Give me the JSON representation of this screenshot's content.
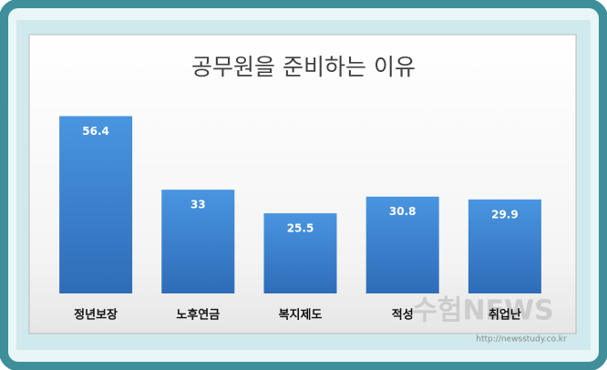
{
  "chart_data": {
    "type": "bar",
    "title": "공무원을 준비하는 이유",
    "categories": [
      "정년보장",
      "노후연금",
      "복지제도",
      "적성",
      "취업난"
    ],
    "values": [
      56.4,
      33,
      25.5,
      30.8,
      29.9
    ],
    "color": "#3a7fcf",
    "watermark": "수험NEWS",
    "watermark_url": "http://newsstudy.co.kr"
  }
}
